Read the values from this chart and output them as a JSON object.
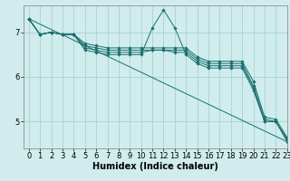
{
  "xlabel": "Humidex (Indice chaleur)",
  "bg_color": "#d0ecec",
  "line_color": "#1a7070",
  "grid_color": "#a0cccc",
  "xlim": [
    -0.5,
    23
  ],
  "ylim": [
    4.4,
    7.6
  ],
  "yticks": [
    5,
    6,
    7
  ],
  "xticks": [
    0,
    1,
    2,
    3,
    4,
    5,
    6,
    7,
    8,
    9,
    10,
    11,
    12,
    13,
    14,
    15,
    16,
    17,
    18,
    19,
    20,
    21,
    22,
    23
  ],
  "lines": [
    {
      "x": [
        0,
        1,
        2,
        3,
        4,
        5,
        6,
        7,
        8,
        9,
        10,
        11,
        12,
        13,
        14,
        15,
        16,
        17,
        18,
        19,
        20,
        21,
        22,
        23
      ],
      "y": [
        7.3,
        6.95,
        7.0,
        6.95,
        6.95,
        6.6,
        6.55,
        6.5,
        6.5,
        6.5,
        6.5,
        7.1,
        7.5,
        7.1,
        6.5,
        6.3,
        6.2,
        6.2,
        6.2,
        6.2,
        5.7,
        5.0,
        5.0,
        4.55
      ],
      "marker": true
    },
    {
      "x": [
        0,
        1,
        2,
        3,
        4,
        5,
        6,
        7,
        8,
        9,
        10,
        11,
        12,
        13,
        14,
        15,
        16,
        17,
        18,
        19,
        20,
        21,
        22,
        23
      ],
      "y": [
        7.3,
        6.95,
        7.0,
        6.95,
        6.95,
        6.65,
        6.6,
        6.55,
        6.55,
        6.55,
        6.55,
        6.6,
        6.6,
        6.55,
        6.55,
        6.35,
        6.25,
        6.25,
        6.25,
        6.25,
        5.75,
        5.0,
        5.0,
        4.6
      ],
      "marker": true
    },
    {
      "x": [
        0,
        1,
        2,
        3,
        4,
        5,
        6,
        7,
        8,
        9,
        10,
        11,
        12,
        13,
        14,
        15,
        16,
        17,
        18,
        19,
        20,
        21,
        22,
        23
      ],
      "y": [
        7.3,
        6.95,
        7.0,
        6.95,
        6.95,
        6.7,
        6.65,
        6.6,
        6.6,
        6.6,
        6.6,
        6.6,
        6.6,
        6.6,
        6.6,
        6.4,
        6.3,
        6.3,
        6.3,
        6.3,
        5.8,
        5.05,
        5.0,
        4.6
      ],
      "marker": true
    },
    {
      "x": [
        0,
        1,
        2,
        3,
        4,
        5,
        6,
        7,
        8,
        9,
        10,
        11,
        12,
        13,
        14,
        15,
        16,
        17,
        18,
        19,
        20,
        21,
        22,
        23
      ],
      "y": [
        7.3,
        6.95,
        7.0,
        6.95,
        6.95,
        6.75,
        6.7,
        6.65,
        6.65,
        6.65,
        6.65,
        6.65,
        6.65,
        6.65,
        6.65,
        6.45,
        6.35,
        6.35,
        6.35,
        6.35,
        5.9,
        5.1,
        5.05,
        4.65
      ],
      "marker": true
    },
    {
      "x": [
        0,
        23
      ],
      "y": [
        7.3,
        4.55
      ],
      "marker": false
    }
  ],
  "fontsize_label": 7,
  "fontsize_tick": 6
}
